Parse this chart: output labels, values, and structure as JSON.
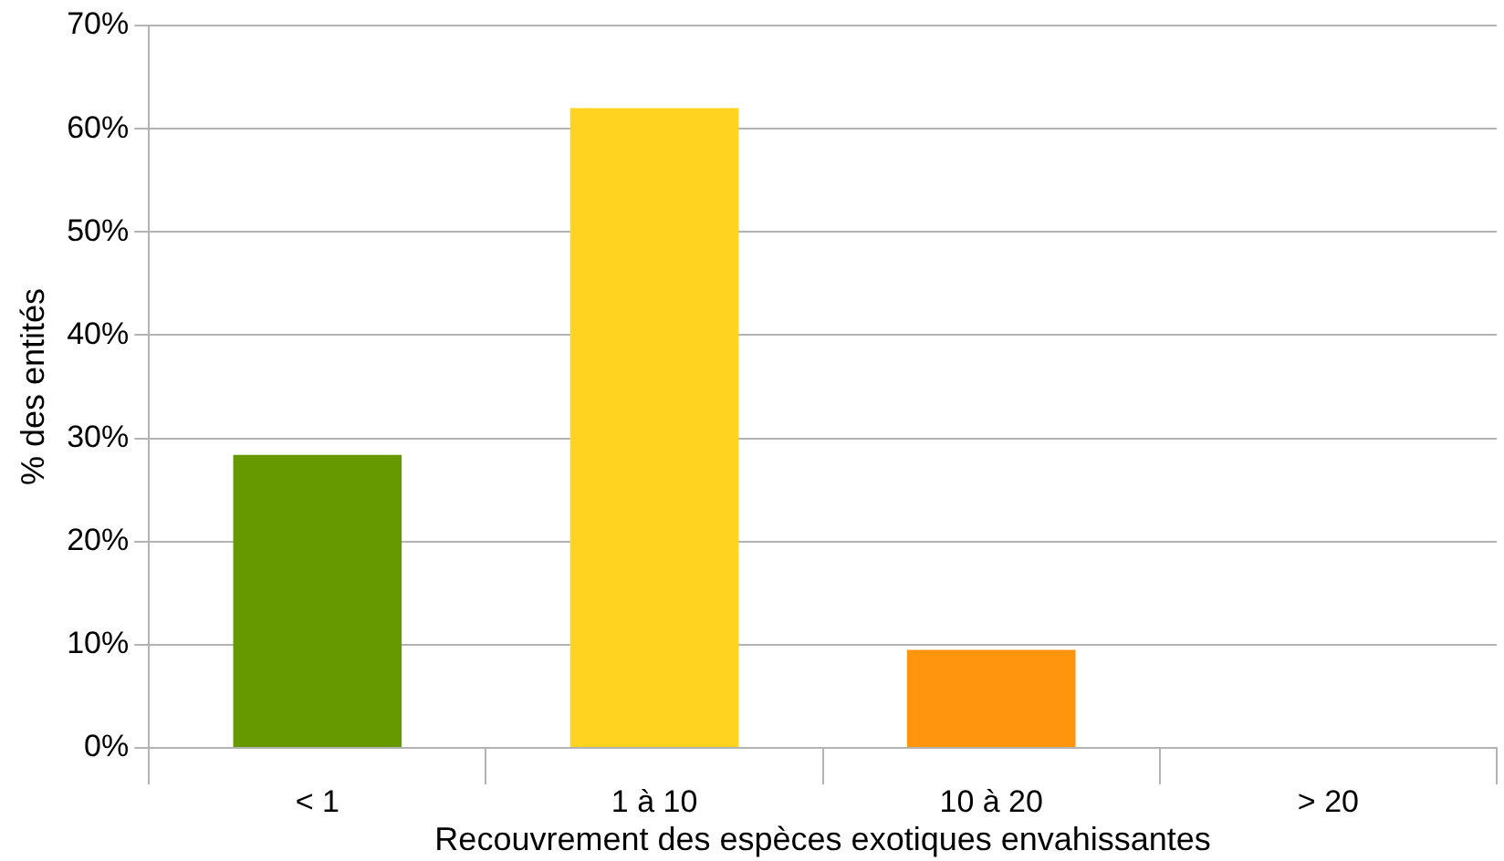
{
  "chart_data": {
    "type": "bar",
    "xlabel": "Recouvrement des espèces exotiques envahissantes",
    "ylabel": "% des entités",
    "categories": [
      "< 1",
      "1 à 10",
      "10 à 20",
      "> 20"
    ],
    "values": [
      28.4,
      62,
      9.5,
      0
    ],
    "colors": [
      "#669900",
      "#ffd320",
      "#ff950e",
      "#83caff"
    ],
    "ylim": [
      0,
      70
    ],
    "yticks": [
      {
        "value": 0,
        "label": "0%"
      },
      {
        "value": 10,
        "label": "10%"
      },
      {
        "value": 20,
        "label": "20%"
      },
      {
        "value": 30,
        "label": "30%"
      },
      {
        "value": 40,
        "label": "40%"
      },
      {
        "value": 50,
        "label": "50%"
      },
      {
        "value": 60,
        "label": "60%"
      },
      {
        "value": 70,
        "label": "70%"
      }
    ],
    "grid": "y",
    "legend": false
  }
}
